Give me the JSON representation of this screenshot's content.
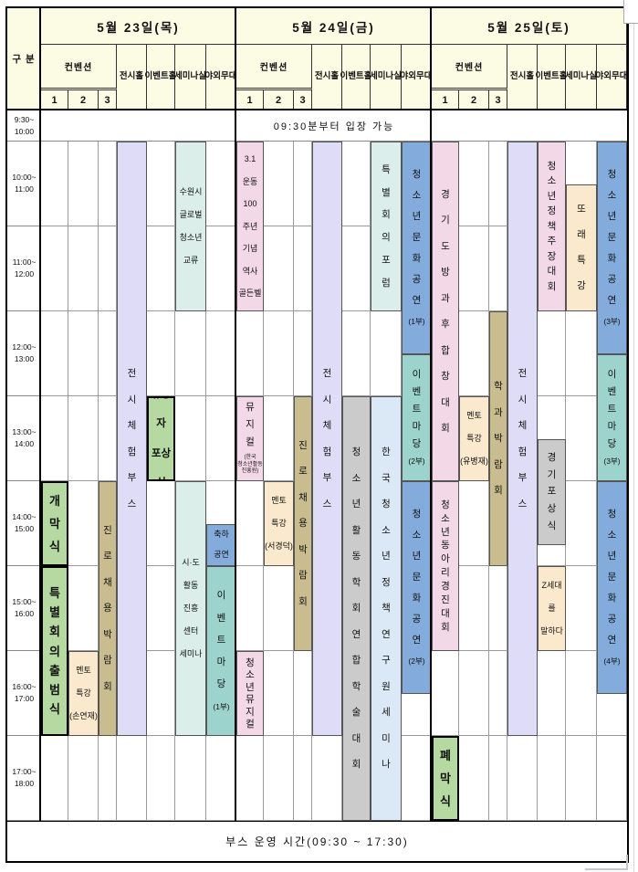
{
  "header": {
    "corner": "구 분",
    "convention": "컨벤션",
    "convention_units": [
      "1",
      "2",
      "3"
    ],
    "venues": [
      "전시홀",
      "이벤트홀",
      "세미나실",
      "야외무대"
    ],
    "days": [
      "5월 23일(목)",
      "5월 24일(금)",
      "5월 25일(토)"
    ]
  },
  "times": [
    "9:30~\n10:00",
    "10:00~\n11:00",
    "11:00~\n12:00",
    "12:00~\n13:00",
    "13:00~\n14:00",
    "14:00~\n15:00",
    "15:00~\n16:00",
    "16:00~\n17:00",
    "17:00~\n18:00"
  ],
  "entry_notice": "09:30분부터 입장 가능",
  "footer_note": "부스 운영 시간(09:30 ~ 17:30)",
  "colors": {
    "header_bg": "#FCFCE5",
    "green": "#B5D9A1",
    "pink": "#F3D8E7",
    "peach": "#FAE9CC",
    "tan": "#C9BD90",
    "lavender": "#DEDCF6",
    "paleteal": "#DBEEEA",
    "gray": "#CBCBCB",
    "lightblue": "#DBE8F5",
    "blue": "#83ACDD",
    "teal": "#9CD3CD",
    "grid": "#9A9A9A",
    "border": "#000000"
  },
  "events": [
    {
      "day": 0,
      "col": 0,
      "venue": "컨벤션1",
      "start": 14,
      "end": 15,
      "color": "green",
      "mode": "v",
      "emphasis": true,
      "text": "개막식"
    },
    {
      "day": 0,
      "col": 0,
      "venue": "컨벤션1",
      "start": 15,
      "end": 17,
      "color": "green",
      "mode": "v",
      "emphasis": true,
      "text": "특별회의출범식"
    },
    {
      "day": 0,
      "col": 1,
      "venue": "컨벤션2",
      "start": 16,
      "end": 17,
      "color": "peach",
      "mode": "h",
      "text": "멘토\n특강\n(손연재)"
    },
    {
      "day": 0,
      "col": 2,
      "venue": "컨벤션3",
      "start": 14,
      "end": 17,
      "color": "tan",
      "mode": "v",
      "text": "진로채용박람회"
    },
    {
      "day": 0,
      "col": 3,
      "venue": "전시홀",
      "start": 10,
      "end": 17,
      "color": "lavender",
      "mode": "v",
      "text": "전시체험부스"
    },
    {
      "day": 0,
      "col": 4,
      "venue": "이벤트홀",
      "start": 13,
      "end": 14,
      "color": "green",
      "mode": "h",
      "emphasis": true,
      "text": "유공자\n포상식"
    },
    {
      "day": 0,
      "col": 5,
      "venue": "세미나실",
      "start": 10,
      "end": 12,
      "color": "paleteal",
      "mode": "h",
      "text": "수원시\n글로벌\n청소년\n교류"
    },
    {
      "day": 0,
      "col": 5,
      "venue": "세미나실",
      "start": 14,
      "end": 17,
      "color": "paleteal",
      "mode": "h",
      "text": "시·도\n활동\n진흥\n센터\n세미나"
    },
    {
      "day": 0,
      "col": 6,
      "venue": "야외무대",
      "start": 14.5,
      "end": 15,
      "color": "blue",
      "mode": "h",
      "text": "축하\n공연"
    },
    {
      "day": 0,
      "col": 6,
      "venue": "야외무대",
      "start": 15,
      "end": 17,
      "color": "teal",
      "mode": "v",
      "text": "이벤트마당",
      "suffix": "(1부)"
    },
    {
      "day": 1,
      "col": 0,
      "venue": "컨벤션1",
      "start": 10,
      "end": 12,
      "color": "pink",
      "mode": "h",
      "text": "3.1\n운동\n100\n주년\n기념\n역사\n골든벨"
    },
    {
      "day": 1,
      "col": 0,
      "venue": "컨벤션1",
      "start": 13,
      "end": 14,
      "color": "pink",
      "mode": "v",
      "text": "뮤지컬",
      "suffix": "(한국\n청소년활동\n진흥원)"
    },
    {
      "day": 1,
      "col": 0,
      "venue": "컨벤션1",
      "start": 16,
      "end": 17,
      "color": "pink",
      "mode": "v",
      "text": "청소년뮤지컬"
    },
    {
      "day": 1,
      "col": 1,
      "venue": "컨벤션2",
      "start": 14,
      "end": 15,
      "color": "peach",
      "mode": "h",
      "text": "멘토\n특강\n(서경덕)"
    },
    {
      "day": 1,
      "col": 2,
      "venue": "컨벤션3",
      "start": 13,
      "end": 16,
      "color": "tan",
      "mode": "v",
      "text": "진로채용박람회"
    },
    {
      "day": 1,
      "col": 3,
      "venue": "전시홀",
      "start": 10,
      "end": 17,
      "color": "lavender",
      "mode": "v",
      "text": "전시체험부스"
    },
    {
      "day": 1,
      "col": 4,
      "venue": "이벤트홀",
      "start": 13,
      "end": 18,
      "color": "gray",
      "mode": "v",
      "text": "청소년활동학회연합학술대회"
    },
    {
      "day": 1,
      "col": 5,
      "venue": "세미나실",
      "start": 10,
      "end": 12,
      "color": "paleteal",
      "mode": "v",
      "text": "특별회의포럼"
    },
    {
      "day": 1,
      "col": 5,
      "venue": "세미나실",
      "start": 13,
      "end": 18,
      "color": "lightblue",
      "mode": "v",
      "text": "한국청소년정책연구원세미나"
    },
    {
      "day": 1,
      "col": 6,
      "venue": "야외무대",
      "start": 10,
      "end": 12.5,
      "color": "blue",
      "mode": "v",
      "text": "청소년문화공연",
      "suffix": "(1부)"
    },
    {
      "day": 1,
      "col": 6,
      "venue": "야외무대",
      "start": 12.5,
      "end": 14,
      "color": "teal",
      "mode": "v",
      "text": "이벤트마당",
      "suffix": "(2부)"
    },
    {
      "day": 1,
      "col": 6,
      "venue": "야외무대",
      "start": 14,
      "end": 16.5,
      "color": "blue",
      "mode": "v",
      "text": "청소년문화공연",
      "suffix": "(2부)"
    },
    {
      "day": 2,
      "col": 0,
      "venue": "컨벤션1",
      "start": 10,
      "end": 14,
      "color": "pink",
      "mode": "v",
      "text": "경기도방과후합창대회"
    },
    {
      "day": 2,
      "col": 0,
      "venue": "컨벤션1",
      "start": 14,
      "end": 16,
      "color": "pink",
      "mode": "v",
      "text": "청소년동아리경진대회"
    },
    {
      "day": 2,
      "col": 0,
      "venue": "컨벤션1",
      "start": 17,
      "end": 18,
      "color": "green",
      "mode": "v",
      "emphasis": true,
      "text": "폐막식"
    },
    {
      "day": 2,
      "col": 1,
      "venue": "컨벤션2",
      "start": 13,
      "end": 14,
      "color": "peach",
      "mode": "h",
      "text": "멘토\n특강\n(유병재)"
    },
    {
      "day": 2,
      "col": 2,
      "venue": "컨벤션3",
      "start": 12,
      "end": 15,
      "color": "tan",
      "mode": "v",
      "text": "학과박람회"
    },
    {
      "day": 2,
      "col": 3,
      "venue": "전시홀",
      "start": 10,
      "end": 17,
      "color": "lavender",
      "mode": "v",
      "text": "전시체험부스"
    },
    {
      "day": 2,
      "col": 4,
      "venue": "이벤트홀",
      "start": 10,
      "end": 12,
      "color": "pink",
      "mode": "v",
      "text": "청소년정책주장대회"
    },
    {
      "day": 2,
      "col": 4,
      "venue": "이벤트홀",
      "start": 13.5,
      "end": 14.75,
      "color": "gray",
      "mode": "v",
      "text": "경기포상식"
    },
    {
      "day": 2,
      "col": 4,
      "venue": "이벤트홀",
      "start": 15,
      "end": 16,
      "color": "peach",
      "mode": "h",
      "text": "Z세대를\n말하다"
    },
    {
      "day": 2,
      "col": 5,
      "venue": "세미나실",
      "start": 10.5,
      "end": 12,
      "color": "peach",
      "mode": "v",
      "text": "또래특강"
    },
    {
      "day": 2,
      "col": 6,
      "venue": "야외무대",
      "start": 10,
      "end": 12.5,
      "color": "blue",
      "mode": "v",
      "text": "청소년문화공연",
      "suffix": "(3부)"
    },
    {
      "day": 2,
      "col": 6,
      "venue": "야외무대",
      "start": 12.5,
      "end": 14,
      "color": "teal",
      "mode": "v",
      "text": "이벤트마당",
      "suffix": "(3부)"
    },
    {
      "day": 2,
      "col": 6,
      "venue": "야외무대",
      "start": 14,
      "end": 16.5,
      "color": "blue",
      "mode": "v",
      "text": "청소년문화공연",
      "suffix": "(4부)"
    }
  ]
}
